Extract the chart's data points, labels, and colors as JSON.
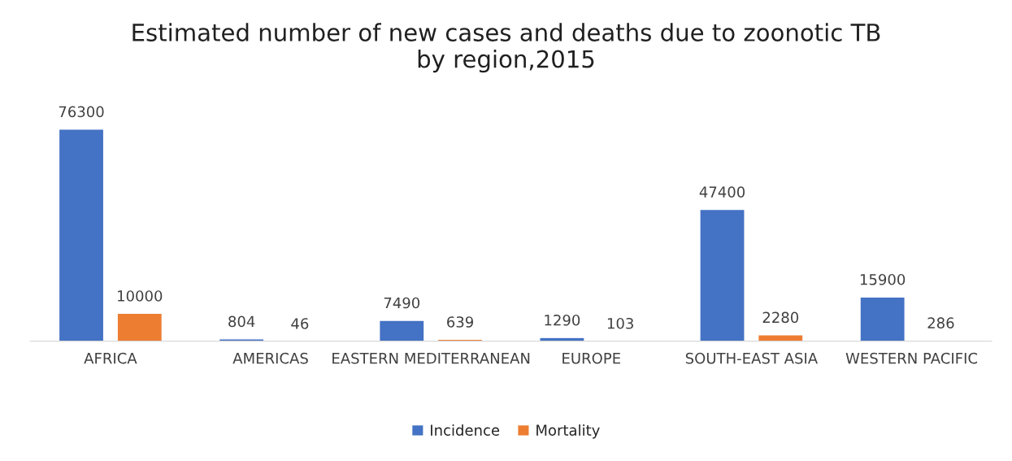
{
  "chart_data": {
    "type": "bar",
    "title": "Estimated number of new cases and deaths due to zoonotic TB\nby region,2015",
    "categories": [
      "AFRICA",
      "AMERICAS",
      "EASTERN MEDITERRANEAN",
      "EUROPE",
      "SOUTH-EAST ASIA",
      "WESTERN PACIFIC"
    ],
    "series": [
      {
        "name": "Incidence",
        "color": "#4472c4",
        "values": [
          76300,
          804,
          7490,
          1290,
          47400,
          15900
        ]
      },
      {
        "name": "Mortality",
        "color": "#ed7d31",
        "values": [
          10000,
          46,
          639,
          103,
          2280,
          286
        ]
      }
    ],
    "data_labels": true,
    "legend": "bottom",
    "grid": false
  }
}
